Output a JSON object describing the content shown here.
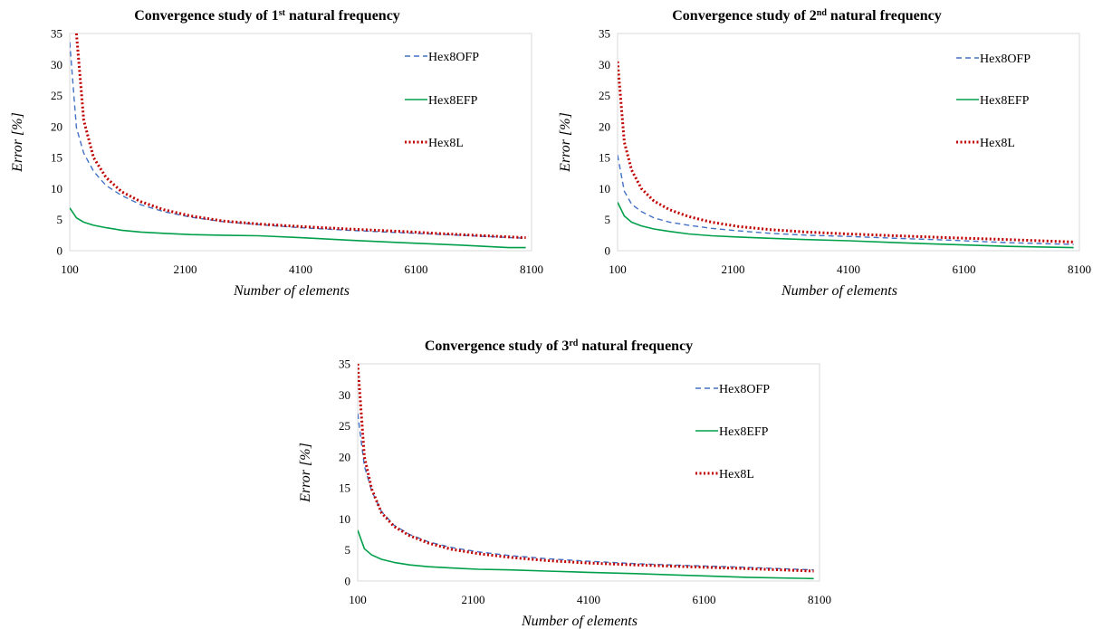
{
  "colors": {
    "Hex8OFP": "#4472c4",
    "Hex8EFP": "#00a04a",
    "Hex8L": "#c00000",
    "frame": "#d9d9d9"
  },
  "chart_data": [
    {
      "type": "line",
      "title": "Convergence study of 1st natural frequency",
      "title_parts": {
        "prefix": "Convergence study of 1",
        "sup": "st",
        "suffix": " natural frequency"
      },
      "xlabel": "Number of elements",
      "ylabel": "Error [%]",
      "xlim": [
        100,
        8100
      ],
      "ylim": [
        0,
        35
      ],
      "xticks": [
        100,
        2100,
        4100,
        6100,
        8100
      ],
      "yticks": [
        0,
        5,
        10,
        15,
        20,
        25,
        30,
        35
      ],
      "legend": "top-right",
      "grid": false,
      "series": [
        {
          "name": "Hex8OFP",
          "style": "dashed",
          "x": [
            100,
            216,
            343,
            512,
            729,
            1000,
            1331,
            1728,
            2197,
            2744,
            3375,
            4096,
            4913,
            5832,
            6859,
            8000
          ],
          "y": [
            33.6,
            19.8,
            15.7,
            12.8,
            10.5,
            8.9,
            7.4,
            6.3,
            5.4,
            4.7,
            4.2,
            3.7,
            3.3,
            2.9,
            2.5,
            2.0
          ]
        },
        {
          "name": "Hex8EFP",
          "style": "solid",
          "x": [
            100,
            216,
            343,
            512,
            729,
            1000,
            1331,
            1728,
            2197,
            2744,
            3375,
            4096,
            4913,
            5832,
            6859,
            7700,
            8000
          ],
          "y": [
            6.9,
            5.3,
            4.6,
            4.1,
            3.7,
            3.3,
            3.0,
            2.8,
            2.6,
            2.5,
            2.4,
            2.1,
            1.7,
            1.3,
            0.9,
            0.5,
            0.5
          ]
        },
        {
          "name": "Hex8L",
          "style": "dotted",
          "x": [
            216,
            343,
            512,
            729,
            1000,
            1331,
            1728,
            2197,
            2744,
            3375,
            4096,
            4913,
            5832,
            6859,
            8000
          ],
          "y": [
            35.0,
            21.0,
            15.0,
            11.8,
            9.5,
            7.9,
            6.6,
            5.6,
            4.8,
            4.3,
            3.9,
            3.5,
            3.1,
            2.6,
            2.1
          ]
        }
      ]
    },
    {
      "type": "line",
      "title": "Convergence study of 2nd natural frequency",
      "title_parts": {
        "prefix": "Convergence study of 2",
        "sup": "nd",
        "suffix": " natural frequency"
      },
      "xlabel": "Number of elements",
      "ylabel": "Error [%]",
      "xlim": [
        100,
        8100
      ],
      "ylim": [
        0,
        35
      ],
      "xticks": [
        100,
        2100,
        4100,
        6100,
        8100
      ],
      "yticks": [
        0,
        5,
        10,
        15,
        20,
        25,
        30,
        35
      ],
      "legend": "top-right",
      "grid": false,
      "series": [
        {
          "name": "Hex8OFP",
          "style": "dashed",
          "x": [
            100,
            216,
            343,
            512,
            729,
            1000,
            1331,
            1728,
            2197,
            2744,
            3375,
            4096,
            4913,
            5832,
            6859,
            8000
          ],
          "y": [
            15.4,
            9.6,
            7.5,
            6.3,
            5.3,
            4.6,
            4.1,
            3.6,
            3.2,
            2.8,
            2.5,
            2.3,
            2.0,
            1.7,
            1.3,
            1.0
          ]
        },
        {
          "name": "Hex8EFP",
          "style": "solid",
          "x": [
            100,
            216,
            343,
            512,
            729,
            1000,
            1331,
            1728,
            2197,
            2744,
            3375,
            4096,
            4913,
            5832,
            6859,
            8000
          ],
          "y": [
            7.8,
            5.6,
            4.6,
            4.0,
            3.5,
            3.1,
            2.7,
            2.4,
            2.2,
            2.0,
            1.8,
            1.6,
            1.3,
            1.0,
            0.7,
            0.5
          ]
        },
        {
          "name": "Hex8L",
          "style": "dotted",
          "x": [
            100,
            216,
            343,
            512,
            729,
            1000,
            1331,
            1728,
            2197,
            2744,
            3375,
            4096,
            4913,
            5832,
            6859,
            8000
          ],
          "y": [
            30.5,
            17.5,
            13.0,
            10.0,
            8.0,
            6.6,
            5.5,
            4.6,
            3.9,
            3.4,
            3.0,
            2.7,
            2.4,
            2.1,
            1.8,
            1.4
          ]
        }
      ]
    },
    {
      "type": "line",
      "title": "Convergence study of 3rd natural frequency",
      "title_parts": {
        "prefix": "Convergence study of 3",
        "sup": "rd",
        "suffix": " natural frequency"
      },
      "xlabel": "Number of elements",
      "ylabel": "Error [%]",
      "xlim": [
        100,
        8100
      ],
      "ylim": [
        0,
        35
      ],
      "xticks": [
        100,
        2100,
        4100,
        6100,
        8100
      ],
      "yticks": [
        0,
        5,
        10,
        15,
        20,
        25,
        30,
        35
      ],
      "legend": "top-right",
      "grid": false,
      "series": [
        {
          "name": "Hex8OFP",
          "style": "dashed",
          "x": [
            100,
            216,
            343,
            512,
            729,
            1000,
            1331,
            1728,
            2197,
            2744,
            3375,
            4096,
            4913,
            5832,
            6859,
            8000
          ],
          "y": [
            27.0,
            18.5,
            14.5,
            11.2,
            9.0,
            7.5,
            6.3,
            5.4,
            4.7,
            4.1,
            3.6,
            3.2,
            2.8,
            2.5,
            2.2,
            1.8
          ]
        },
        {
          "name": "Hex8EFP",
          "style": "solid",
          "x": [
            100,
            216,
            343,
            512,
            729,
            1000,
            1331,
            1728,
            2197,
            2744,
            3375,
            4096,
            4913,
            5832,
            6859,
            8000
          ],
          "y": [
            8.2,
            5.2,
            4.2,
            3.5,
            3.0,
            2.6,
            2.3,
            2.1,
            1.9,
            1.8,
            1.6,
            1.4,
            1.2,
            0.9,
            0.6,
            0.4
          ]
        },
        {
          "name": "Hex8L",
          "style": "dotted",
          "x": [
            100,
            216,
            343,
            512,
            729,
            1000,
            1331,
            1728,
            2197,
            2744,
            3375,
            4096,
            4913,
            5832,
            6859,
            8000
          ],
          "y": [
            35.0,
            20.0,
            14.8,
            11.0,
            8.8,
            7.3,
            6.1,
            5.1,
            4.4,
            3.8,
            3.3,
            2.9,
            2.6,
            2.3,
            2.0,
            1.6
          ]
        }
      ]
    }
  ]
}
